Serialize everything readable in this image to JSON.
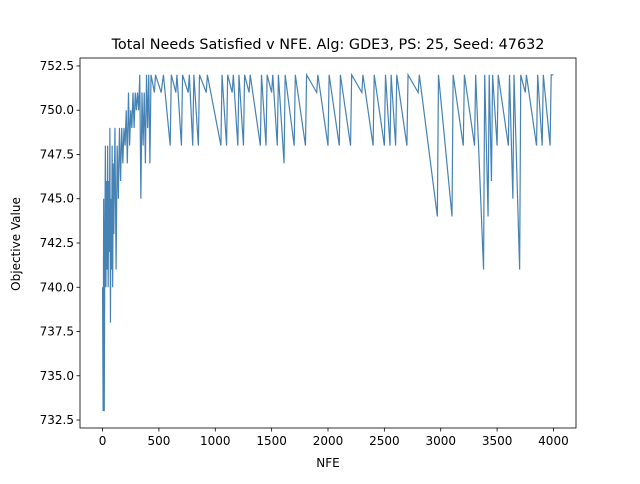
{
  "chart_data": {
    "type": "line",
    "title": "Total Needs Satisfied v NFE. Alg: GDE3, PS: 25, Seed: 47632",
    "x_label": "NFE",
    "y_label": "Objective Value",
    "color": "#4682b4",
    "xlim": [
      -200,
      4200
    ],
    "ylim": [
      732.05,
      752.95
    ],
    "xticks": [
      0,
      500,
      1000,
      1500,
      2000,
      2500,
      3000,
      3500,
      4000
    ],
    "yticks": [
      732.5,
      {
        "value": 735,
        "label": "735.0"
      },
      737.5,
      {
        "value": 740,
        "label": "740.0"
      },
      742.5,
      {
        "value": 745,
        "label": "745.0"
      },
      747.5,
      {
        "value": 750,
        "label": "750.0"
      },
      752.5
    ],
    "x": [
      0,
      5,
      10,
      15,
      20,
      25,
      30,
      35,
      40,
      45,
      50,
      55,
      60,
      65,
      70,
      75,
      80,
      85,
      90,
      95,
      100,
      110,
      120,
      130,
      140,
      150,
      160,
      170,
      180,
      190,
      200,
      210,
      220,
      230,
      240,
      250,
      260,
      270,
      280,
      290,
      300,
      310,
      320,
      330,
      340,
      350,
      360,
      370,
      380,
      390,
      400,
      410,
      420,
      430,
      460,
      470,
      520,
      540,
      600,
      610,
      650,
      660,
      700,
      710,
      760,
      770,
      800,
      810,
      850,
      860,
      920,
      930,
      1050,
      1060,
      1100,
      1110,
      1150,
      1160,
      1200,
      1210,
      1250,
      1260,
      1300,
      1310,
      1400,
      1410,
      1450,
      1460,
      1500,
      1510,
      1550,
      1560,
      1610,
      1620,
      1700,
      1710,
      1800,
      1810,
      1900,
      1910,
      2000,
      2010,
      2100,
      2110,
      2200,
      2210,
      2300,
      2310,
      2400,
      2410,
      2500,
      2510,
      2550,
      2560,
      2600,
      2610,
      2700,
      2710,
      2800,
      2810,
      2970,
      2980,
      3100,
      3110,
      3200,
      3210,
      3300,
      3310,
      3380,
      3390,
      3420,
      3430,
      3450,
      3460,
      3500,
      3510,
      3600,
      3610,
      3640,
      3650,
      3700,
      3710,
      3750,
      3760,
      3850,
      3860,
      3900,
      3910,
      3970,
      3980,
      4000
    ],
    "values": [
      740,
      733,
      745,
      733,
      742,
      748,
      740,
      746,
      741,
      748,
      740,
      746,
      742,
      749,
      738,
      745,
      741,
      748,
      740,
      747,
      743,
      749,
      741,
      748,
      745,
      749,
      746,
      749,
      747,
      749,
      748,
      750,
      747,
      751,
      748,
      750,
      749,
      751,
      749,
      751,
      750,
      751,
      750,
      752,
      745,
      751,
      748,
      751,
      747,
      752,
      749,
      752,
      747,
      752,
      751,
      752,
      751,
      752,
      748,
      752,
      751,
      752,
      748,
      752,
      751,
      752,
      748,
      752,
      748,
      752,
      751,
      752,
      748,
      752,
      748,
      752,
      751,
      752,
      748,
      752,
      748,
      752,
      751,
      752,
      748,
      752,
      748,
      752,
      751,
      752,
      748,
      752,
      747,
      752,
      748,
      752,
      748,
      752,
      751,
      752,
      748,
      752,
      748,
      752,
      748,
      752,
      751,
      752,
      748,
      752,
      748,
      752,
      748,
      752,
      748,
      752,
      748,
      752,
      751,
      752,
      744,
      752,
      744,
      752,
      748,
      752,
      748,
      752,
      741,
      752,
      744,
      752,
      746,
      752,
      748,
      752,
      748,
      752,
      745,
      752,
      741,
      752,
      751,
      752,
      748,
      752,
      748,
      752,
      748,
      752,
      752
    ]
  }
}
